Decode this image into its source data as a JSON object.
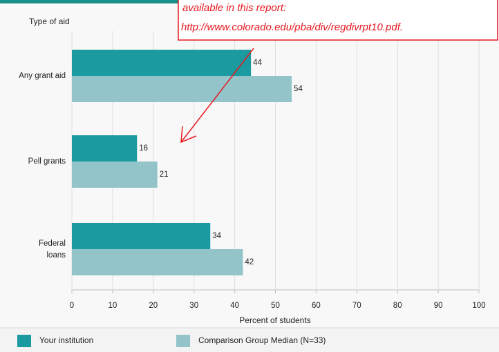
{
  "chart_data": {
    "type": "bar",
    "orientation": "horizontal",
    "y_axis_title": "Type of aid",
    "x_axis_title": "Percent of students",
    "categories": [
      "Any grant aid",
      "Pell grants",
      "Federal\nloans"
    ],
    "series": [
      {
        "name": "Your institution",
        "color": "#1b9aa0",
        "values": [
          44,
          16,
          34
        ]
      },
      {
        "name": "Comparison Group Median (N=33)",
        "color": "#93c4c9",
        "values": [
          54,
          21,
          42
        ]
      }
    ],
    "xlim": [
      0,
      100
    ],
    "xticks": [
      0,
      10,
      20,
      30,
      40,
      50,
      60,
      70,
      80,
      90,
      100
    ],
    "grid": true,
    "annotation": [
      "available in this report:",
      "http://www.colorado.edu/pba/div/regdivrpt10.pdf."
    ]
  }
}
